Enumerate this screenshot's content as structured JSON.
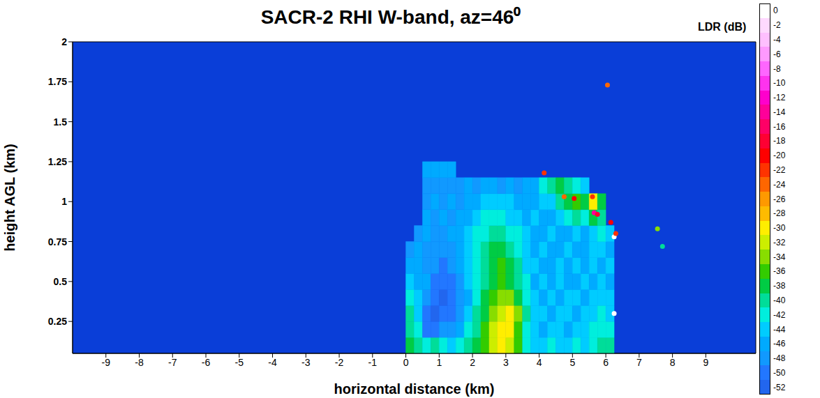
{
  "chart_data": {
    "type": "heatmap",
    "title": "SACR-2 RHI W-band, az=46⁰",
    "xlabel": "horizontal distance (km)",
    "ylabel": "height AGL (km)",
    "xlim": [
      -10,
      10.5
    ],
    "xticks": [
      -9,
      -8,
      -7,
      -6,
      -5,
      -4,
      -3,
      -2,
      -1,
      0,
      1,
      2,
      3,
      4,
      5,
      6,
      7,
      8,
      9
    ],
    "ylim": [
      0.05,
      2
    ],
    "yticks": [
      0.25,
      0.5,
      0.75,
      1,
      1.25,
      1.5,
      1.75,
      2
    ],
    "color": "#0a3ed8",
    "x_edges": [
      0,
      0.25,
      0.5,
      0.75,
      1,
      1.25,
      1.5,
      1.75,
      2,
      2.25,
      2.5,
      2.75,
      3,
      3.25,
      3.5,
      3.75,
      4,
      4.25,
      4.5,
      4.75,
      5,
      5.25,
      5.5,
      5.75,
      6,
      6.25,
      6.5
    ],
    "y_edges": [
      0.05,
      0.15,
      0.25,
      0.35,
      0.45,
      0.55,
      0.65,
      0.75,
      0.85,
      0.95,
      1.05,
      1.15,
      1.25
    ],
    "cells": [
      [
        -38,
        -40,
        -42,
        -40,
        -42,
        -44,
        -42,
        -40,
        -38,
        -36,
        -32,
        -30,
        -32,
        -36,
        -42,
        -44,
        -44,
        -42,
        -44,
        -44,
        -42,
        -44,
        -42,
        -40,
        -40,
        null
      ],
      [
        -40,
        -42,
        -50,
        -50,
        -48,
        -48,
        -46,
        -42,
        -40,
        -36,
        -32,
        -30,
        -30,
        -36,
        -42,
        -44,
        -46,
        -44,
        -44,
        -46,
        -44,
        -44,
        -42,
        -42,
        -42,
        null
      ],
      [
        -40,
        -44,
        -50,
        -52,
        -50,
        -50,
        -48,
        -44,
        -40,
        -38,
        -34,
        -32,
        -30,
        -34,
        -40,
        -44,
        -44,
        -46,
        -44,
        -44,
        -46,
        -44,
        -44,
        -42,
        -44,
        null
      ],
      [
        -42,
        -44,
        -48,
        -50,
        -52,
        -50,
        -48,
        -46,
        -42,
        -38,
        -36,
        -34,
        -34,
        -38,
        -42,
        -44,
        -46,
        -44,
        -46,
        -44,
        -44,
        -46,
        -44,
        -44,
        -44,
        null
      ],
      [
        -44,
        -46,
        -46,
        -50,
        -50,
        -50,
        -48,
        -44,
        -42,
        -40,
        -38,
        -36,
        -38,
        -40,
        -42,
        -46,
        -44,
        -46,
        -44,
        -46,
        -46,
        -44,
        -46,
        -44,
        -46,
        null
      ],
      [
        -46,
        -46,
        -48,
        -48,
        -50,
        -48,
        -46,
        -44,
        -42,
        -40,
        -38,
        -36,
        -38,
        -40,
        -44,
        -44,
        -46,
        -46,
        -44,
        -46,
        -44,
        -46,
        -44,
        -46,
        -44,
        null
      ],
      [
        -48,
        -46,
        -48,
        -48,
        -48,
        -48,
        -46,
        -44,
        -42,
        -40,
        -38,
        -38,
        -40,
        -42,
        -44,
        -46,
        -44,
        -46,
        -46,
        -44,
        -46,
        -46,
        -44,
        -44,
        -46,
        null
      ],
      [
        null,
        -48,
        -46,
        -48,
        -48,
        -46,
        -46,
        -44,
        -42,
        -42,
        -40,
        -40,
        -42,
        -42,
        -44,
        -46,
        -46,
        -44,
        -46,
        -46,
        -44,
        -46,
        -44,
        -42,
        -44,
        null
      ],
      [
        null,
        null,
        -46,
        -48,
        -46,
        -48,
        -46,
        -46,
        -44,
        -42,
        -42,
        -42,
        -44,
        -44,
        -46,
        -44,
        -46,
        -46,
        -44,
        -42,
        -40,
        -42,
        -38,
        -40,
        null,
        null
      ],
      [
        null,
        null,
        -48,
        -46,
        -48,
        -46,
        -48,
        -46,
        -46,
        -44,
        -44,
        -44,
        -44,
        -46,
        -46,
        -46,
        -44,
        -44,
        -40,
        -38,
        -36,
        -38,
        -30,
        -38,
        null,
        null
      ],
      [
        null,
        null,
        -48,
        -48,
        -48,
        -48,
        -48,
        -46,
        -48,
        -46,
        -46,
        -48,
        -46,
        -48,
        -46,
        -46,
        -42,
        -40,
        -38,
        -40,
        -42,
        -44,
        null,
        null,
        null,
        null
      ],
      [
        null,
        null,
        -46,
        -46,
        -46,
        -46,
        null,
        null,
        null,
        null,
        null,
        null,
        null,
        null,
        null,
        null,
        null,
        null,
        null,
        null,
        null,
        null,
        null,
        null,
        null,
        null
      ]
    ],
    "spots": {
      "x": [
        4.15,
        4.75,
        5.05,
        5.6,
        5.65,
        5.75,
        6.05,
        6.15,
        6.25,
        6.3,
        6.25,
        7.55,
        7.7
      ],
      "y": [
        1.18,
        1.03,
        1.02,
        1.03,
        0.93,
        0.92,
        1.73,
        0.87,
        0.78,
        0.8,
        0.3,
        0.83,
        0.72
      ],
      "values": [
        -22,
        -24,
        -20,
        -22,
        -14,
        -18,
        -24,
        -20,
        0,
        -22,
        0,
        -34,
        -40
      ]
    },
    "colorbar": {
      "label": "LDR (dB)",
      "range": [
        -53,
        1
      ],
      "ticks": [
        0,
        -2,
        -4,
        -6,
        -8,
        -10,
        -12,
        -14,
        -16,
        -18,
        -20,
        -22,
        -24,
        -26,
        -28,
        -30,
        -32,
        -34,
        -36,
        -38,
        -40,
        -42,
        -44,
        -46,
        -48,
        -50,
        -52
      ],
      "colors": [
        "#ffffff",
        "#ffd9ff",
        "#ffbfff",
        "#ff99ff",
        "#ff66ff",
        "#ff33ee",
        "#ff00cc",
        "#ff0099",
        "#ff0066",
        "#ff0033",
        "#ff0000",
        "#ff3300",
        "#ff6600",
        "#ff9900",
        "#ffbb00",
        "#ffee00",
        "#ccee00",
        "#88dd00",
        "#33cc00",
        "#00cc44",
        "#00dd99",
        "#00eedd",
        "#00ccff",
        "#00aaff",
        "#1199ff",
        "#2277ff",
        "#2266ee"
      ]
    }
  }
}
